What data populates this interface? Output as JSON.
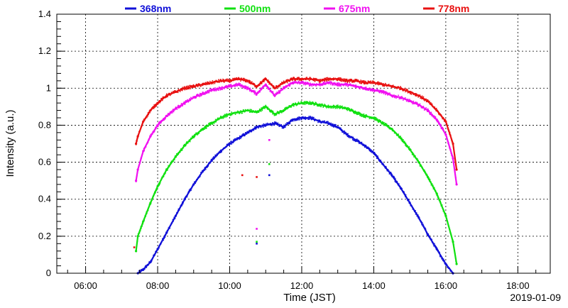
{
  "chart_data": {
    "type": "scatter",
    "title": "",
    "xlabel": "Time (JST)",
    "ylabel": "Intensity (a.u.)",
    "date_label": "2019-01-09",
    "xlim": [
      5.2,
      18.9
    ],
    "ylim": [
      0,
      1.4
    ],
    "x_ticks": [
      {
        "value": 6,
        "label": "06:00"
      },
      {
        "value": 8,
        "label": "08:00"
      },
      {
        "value": 10,
        "label": "10:00"
      },
      {
        "value": 12,
        "label": "12:00"
      },
      {
        "value": 14,
        "label": "14:00"
      },
      {
        "value": 16,
        "label": "16:00"
      },
      {
        "value": 18,
        "label": "18:00"
      }
    ],
    "y_ticks": [
      {
        "value": 0,
        "label": "0"
      },
      {
        "value": 0.2,
        "label": "0.2"
      },
      {
        "value": 0.4,
        "label": "0.4"
      },
      {
        "value": 0.6,
        "label": "0.6"
      },
      {
        "value": 0.8,
        "label": "0.8"
      },
      {
        "value": 1,
        "label": "1"
      },
      {
        "value": 1.2,
        "label": "1.2"
      },
      {
        "value": 1.4,
        "label": "1.4"
      }
    ],
    "grid": true,
    "legend_position": "top",
    "series": [
      {
        "name": "368nm",
        "color": "#1010d8",
        "x": [
          7.45,
          7.6,
          7.8,
          8.0,
          8.25,
          8.5,
          8.75,
          9.0,
          9.25,
          9.5,
          9.75,
          10.0,
          10.25,
          10.5,
          10.75,
          11.0,
          11.25,
          11.5,
          11.75,
          12.0,
          12.25,
          12.5,
          12.75,
          13.0,
          13.25,
          13.5,
          13.75,
          14.0,
          14.25,
          14.5,
          14.75,
          15.0,
          15.25,
          15.5,
          15.75,
          16.0,
          16.2
        ],
        "y": [
          0.0,
          0.02,
          0.06,
          0.13,
          0.22,
          0.31,
          0.4,
          0.48,
          0.55,
          0.61,
          0.66,
          0.7,
          0.73,
          0.76,
          0.79,
          0.8,
          0.81,
          0.79,
          0.83,
          0.84,
          0.84,
          0.82,
          0.81,
          0.79,
          0.75,
          0.72,
          0.69,
          0.65,
          0.59,
          0.53,
          0.46,
          0.38,
          0.3,
          0.21,
          0.13,
          0.05,
          0.0
        ]
      },
      {
        "name": "500nm",
        "color": "#10e010",
        "x": [
          7.4,
          7.45,
          7.6,
          7.8,
          8.0,
          8.25,
          8.5,
          8.75,
          9.0,
          9.25,
          9.5,
          9.75,
          10.0,
          10.25,
          10.5,
          10.75,
          11.0,
          11.25,
          11.5,
          11.75,
          12.0,
          12.25,
          12.5,
          12.75,
          13.0,
          13.25,
          13.5,
          13.75,
          14.0,
          14.25,
          14.5,
          14.75,
          15.0,
          15.25,
          15.5,
          15.75,
          16.0,
          16.2,
          16.3
        ],
        "y": [
          0.12,
          0.2,
          0.28,
          0.38,
          0.47,
          0.56,
          0.63,
          0.69,
          0.74,
          0.78,
          0.81,
          0.84,
          0.86,
          0.87,
          0.88,
          0.87,
          0.9,
          0.86,
          0.88,
          0.91,
          0.92,
          0.92,
          0.91,
          0.9,
          0.9,
          0.89,
          0.87,
          0.85,
          0.84,
          0.81,
          0.78,
          0.73,
          0.67,
          0.6,
          0.52,
          0.43,
          0.31,
          0.17,
          0.05
        ]
      },
      {
        "name": "675nm",
        "color": "#f010f0",
        "x": [
          7.4,
          7.45,
          7.6,
          7.8,
          8.0,
          8.25,
          8.5,
          8.75,
          9.0,
          9.25,
          9.5,
          9.75,
          10.0,
          10.25,
          10.5,
          10.75,
          11.0,
          11.25,
          11.5,
          11.75,
          12.0,
          12.25,
          12.5,
          12.75,
          13.0,
          13.25,
          13.5,
          13.75,
          14.0,
          14.25,
          14.5,
          14.75,
          15.0,
          15.25,
          15.5,
          15.75,
          16.0,
          16.2,
          16.3
        ],
        "y": [
          0.5,
          0.56,
          0.66,
          0.74,
          0.8,
          0.85,
          0.89,
          0.92,
          0.95,
          0.97,
          0.99,
          1.0,
          1.01,
          1.02,
          1.0,
          0.97,
          1.02,
          0.96,
          1.0,
          1.03,
          1.03,
          1.02,
          1.02,
          1.03,
          1.02,
          1.02,
          1.01,
          1.0,
          0.99,
          0.98,
          0.96,
          0.95,
          0.93,
          0.91,
          0.88,
          0.83,
          0.75,
          0.62,
          0.48
        ]
      },
      {
        "name": "778nm",
        "color": "#e81010",
        "x": [
          7.4,
          7.45,
          7.6,
          7.8,
          8.0,
          8.25,
          8.5,
          8.75,
          9.0,
          9.25,
          9.5,
          9.75,
          10.0,
          10.25,
          10.5,
          10.75,
          11.0,
          11.25,
          11.5,
          11.75,
          12.0,
          12.25,
          12.5,
          12.75,
          13.0,
          13.25,
          13.5,
          13.75,
          14.0,
          14.25,
          14.5,
          14.75,
          15.0,
          15.25,
          15.5,
          15.75,
          16.0,
          16.2,
          16.3
        ],
        "y": [
          0.7,
          0.74,
          0.82,
          0.88,
          0.92,
          0.96,
          0.98,
          1.0,
          1.01,
          1.02,
          1.03,
          1.04,
          1.04,
          1.05,
          1.04,
          1.01,
          1.05,
          1.0,
          1.03,
          1.05,
          1.05,
          1.05,
          1.04,
          1.05,
          1.05,
          1.04,
          1.04,
          1.03,
          1.03,
          1.02,
          1.01,
          1.0,
          0.98,
          0.96,
          0.93,
          0.88,
          0.82,
          0.7,
          0.56
        ]
      }
    ],
    "outliers": [
      {
        "series": "368nm",
        "x": 11.1,
        "y": 0.53
      },
      {
        "series": "368nm",
        "x": 10.75,
        "y": 0.16
      },
      {
        "series": "500nm",
        "x": 11.1,
        "y": 0.59
      },
      {
        "series": "500nm",
        "x": 10.75,
        "y": 0.17
      },
      {
        "series": "675nm",
        "x": 11.1,
        "y": 0.72
      },
      {
        "series": "675nm",
        "x": 10.75,
        "y": 0.24
      },
      {
        "series": "778nm",
        "x": 10.35,
        "y": 0.53
      },
      {
        "series": "778nm",
        "x": 10.75,
        "y": 0.52
      },
      {
        "series": "778nm",
        "x": 7.35,
        "y": 0.14
      }
    ]
  }
}
